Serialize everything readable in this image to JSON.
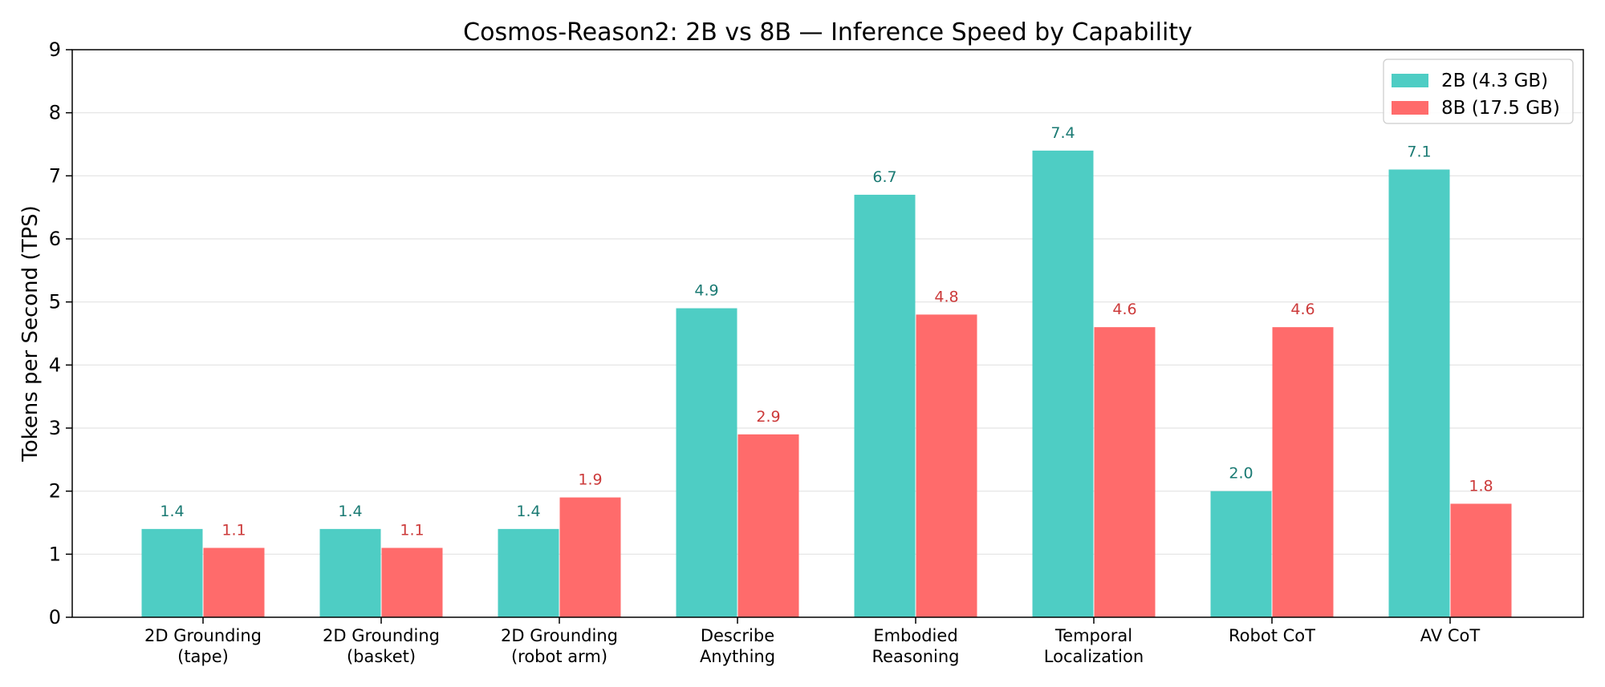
{
  "chart_data": {
    "type": "bar",
    "title": "Cosmos-Reason2: 2B vs 8B — Inference Speed by Capability",
    "xlabel": "",
    "ylabel": "Tokens per Second (TPS)",
    "ylim": [
      0,
      9
    ],
    "yticks": [
      "0",
      "1",
      "2",
      "3",
      "4",
      "5",
      "6",
      "7",
      "8",
      "9"
    ],
    "grid": "horizontal",
    "legend_position": "top-right",
    "categories": [
      [
        "2D Grounding",
        "(tape)"
      ],
      [
        "2D Grounding",
        "(basket)"
      ],
      [
        "2D Grounding",
        "(robot arm)"
      ],
      [
        "Describe",
        "Anything"
      ],
      [
        "Embodied",
        "Reasoning"
      ],
      [
        "Temporal",
        "Localization"
      ],
      [
        "Robot CoT"
      ],
      [
        "AV CoT"
      ]
    ],
    "series": [
      {
        "name": "2B (4.3 GB)",
        "color": "#4ECDC4",
        "label_color": "#1a7a73",
        "values": [
          1.4,
          1.4,
          1.4,
          4.9,
          6.7,
          7.4,
          2.0,
          7.1
        ],
        "labels": [
          "1.4",
          "1.4",
          "1.4",
          "4.9",
          "6.7",
          "7.4",
          "2.0",
          "7.1"
        ]
      },
      {
        "name": "8B (17.5 GB)",
        "color": "#FF6B6B",
        "label_color": "#cc3a3a",
        "values": [
          1.1,
          1.1,
          1.9,
          2.9,
          4.8,
          4.6,
          4.6,
          1.8
        ],
        "labels": [
          "1.1",
          "1.1",
          "1.9",
          "2.9",
          "4.8",
          "4.6",
          "4.6",
          "1.8"
        ]
      }
    ]
  }
}
